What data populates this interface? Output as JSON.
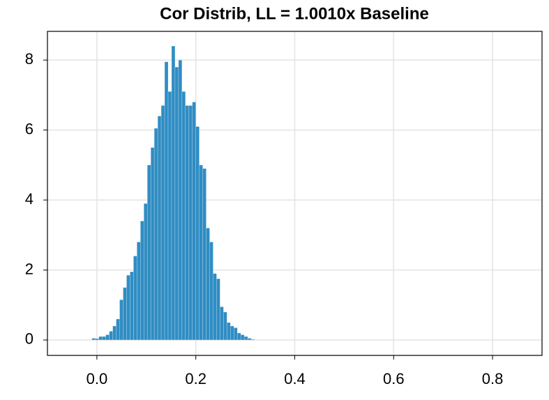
{
  "chart_data": {
    "type": "histogram",
    "title": "Cor Distrib, LL = 1.0010x Baseline",
    "bins": [
      -0.01,
      -0.003,
      0.004,
      0.011,
      0.018,
      0.025,
      0.032,
      0.039,
      0.046,
      0.053,
      0.06,
      0.067,
      0.074,
      0.081,
      0.088,
      0.095,
      0.102,
      0.109,
      0.116,
      0.123,
      0.13,
      0.137,
      0.144,
      0.151,
      0.158,
      0.165,
      0.172,
      0.179,
      0.186,
      0.193,
      0.2,
      0.207,
      0.214,
      0.221,
      0.228,
      0.235,
      0.242,
      0.249,
      0.256,
      0.263,
      0.27,
      0.277,
      0.284,
      0.291,
      0.298,
      0.305,
      0.312,
      0.319
    ],
    "values": [
      0.05,
      0.04,
      0.1,
      0.1,
      0.15,
      0.25,
      0.4,
      0.6,
      1.15,
      1.5,
      1.85,
      1.95,
      2.4,
      2.8,
      3.4,
      3.9,
      5.0,
      5.5,
      6.05,
      6.4,
      6.7,
      7.95,
      7.1,
      8.4,
      7.8,
      8.0,
      7.1,
      6.7,
      6.7,
      6.8,
      6.1,
      5.0,
      4.9,
      3.2,
      2.8,
      1.9,
      1.75,
      0.95,
      0.8,
      0.5,
      0.4,
      0.35,
      0.2,
      0.15,
      0.1,
      0.05,
      0.02
    ],
    "color": "#2f8dc3",
    "xlim": [
      -0.1,
      0.9
    ],
    "ylim": [
      -0.44,
      8.82
    ],
    "xticks": [
      {
        "value": 0,
        "label": "0.0"
      },
      0.2,
      0.4,
      0.6,
      0.8
    ],
    "yticks": [
      0,
      2,
      4,
      6,
      8
    ],
    "grid": true
  }
}
